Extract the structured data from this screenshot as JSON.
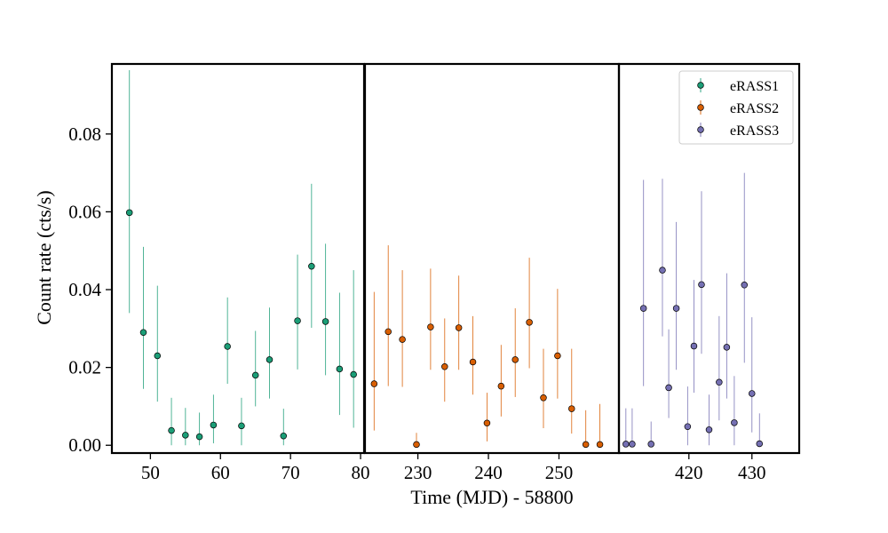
{
  "chart_data": {
    "type": "scatter",
    "xlabel": "Time (MJD) - 58800",
    "ylabel": "Count rate (cts/s)",
    "ylim": [
      -0.002,
      0.098
    ],
    "y_ticks": [
      0.0,
      0.02,
      0.04,
      0.06,
      0.08
    ],
    "y_tick_labels": [
      "0.00",
      "0.02",
      "0.04",
      "0.06",
      "0.08"
    ],
    "legend_position": "upper right",
    "panels": [
      {
        "xlim": [
          44.5,
          80.5
        ],
        "x_ticks": [
          50,
          60,
          70,
          80
        ],
        "x_tick_labels": [
          "50",
          "60",
          "70",
          "80"
        ],
        "series_index": 0
      },
      {
        "xlim": [
          222.5,
          258.5
        ],
        "x_ticks": [
          230,
          240,
          250
        ],
        "x_tick_labels": [
          "230",
          "240",
          "250"
        ],
        "series_index": 1
      },
      {
        "xlim": [
          408.9,
          437.5
        ],
        "x_ticks": [
          420,
          430
        ],
        "x_tick_labels": [
          "420",
          "430"
        ],
        "series_index": 2
      }
    ],
    "series": [
      {
        "name": "eRASS1",
        "color": "#1b9e77",
        "x": [
          47,
          49,
          51,
          53,
          55,
          57,
          59,
          61,
          63,
          65,
          67,
          69,
          71,
          73,
          75,
          77,
          79
        ],
        "y": [
          0.0598,
          0.029,
          0.023,
          0.0038,
          0.0026,
          0.0022,
          0.0052,
          0.0254,
          0.005,
          0.018,
          0.022,
          0.0024,
          0.032,
          0.046,
          0.0318,
          0.0196,
          0.0182
        ],
        "yerr_low": [
          0.0258,
          0.0145,
          0.0118,
          0.0038,
          0.0026,
          0.0022,
          0.0047,
          0.0096,
          0.005,
          0.008,
          0.01,
          0.0024,
          0.0125,
          0.0158,
          0.0138,
          0.0118,
          0.0137
        ],
        "yerr_high": [
          0.0366,
          0.022,
          0.018,
          0.0084,
          0.007,
          0.0062,
          0.0078,
          0.0126,
          0.0072,
          0.0114,
          0.0134,
          0.007,
          0.017,
          0.0212,
          0.02,
          0.0196,
          0.0268
        ]
      },
      {
        "name": "eRASS2",
        "color": "#d95f02",
        "x": [
          223.8,
          225.8,
          227.8,
          229.8,
          231.8,
          233.8,
          235.8,
          237.8,
          239.8,
          241.8,
          243.8,
          245.8,
          247.8,
          249.8,
          251.8,
          253.8,
          255.8
        ],
        "y": [
          0.0158,
          0.0292,
          0.0272,
          0.0002,
          0.0304,
          0.0202,
          0.0302,
          0.0214,
          0.0057,
          0.0152,
          0.022,
          0.0316,
          0.0122,
          0.023,
          0.0094,
          0.0002,
          0.0002
        ],
        "yerr_low": [
          0.012,
          0.014,
          0.0122,
          0.0002,
          0.011,
          0.009,
          0.0108,
          0.0084,
          0.0047,
          0.0078,
          0.0096,
          0.0118,
          0.0078,
          0.011,
          0.0064,
          0.0002,
          0.0002
        ],
        "yerr_high": [
          0.0236,
          0.0222,
          0.0178,
          0.003,
          0.015,
          0.0124,
          0.0134,
          0.0118,
          0.0078,
          0.0106,
          0.0132,
          0.0166,
          0.0126,
          0.0172,
          0.0154,
          0.0088,
          0.0104
        ]
      },
      {
        "name": "eRASS3",
        "color": "#7570b3",
        "x": [
          410,
          411,
          412.8,
          414,
          415.8,
          416.8,
          418,
          419.8,
          420.8,
          422,
          423.2,
          424.8,
          426,
          427.2,
          428.8,
          430,
          431.2
        ],
        "y": [
          0.0003,
          0.0003,
          0.0352,
          0.0003,
          0.045,
          0.0148,
          0.0352,
          0.0048,
          0.0255,
          0.0413,
          0.004,
          0.0162,
          0.0252,
          0.0058,
          0.0412,
          0.0133,
          0.0004
        ],
        "yerr_low": [
          0.0003,
          0.0003,
          0.02,
          0.0003,
          0.017,
          0.0078,
          0.0158,
          0.0048,
          0.012,
          0.0178,
          0.004,
          0.0098,
          0.0132,
          0.0058,
          0.02,
          0.01,
          0.0004
        ],
        "yerr_high": [
          0.0092,
          0.0092,
          0.033,
          0.0058,
          0.0235,
          0.015,
          0.0222,
          0.0103,
          0.017,
          0.024,
          0.009,
          0.017,
          0.019,
          0.012,
          0.0288,
          0.0196,
          0.0078
        ]
      }
    ]
  }
}
